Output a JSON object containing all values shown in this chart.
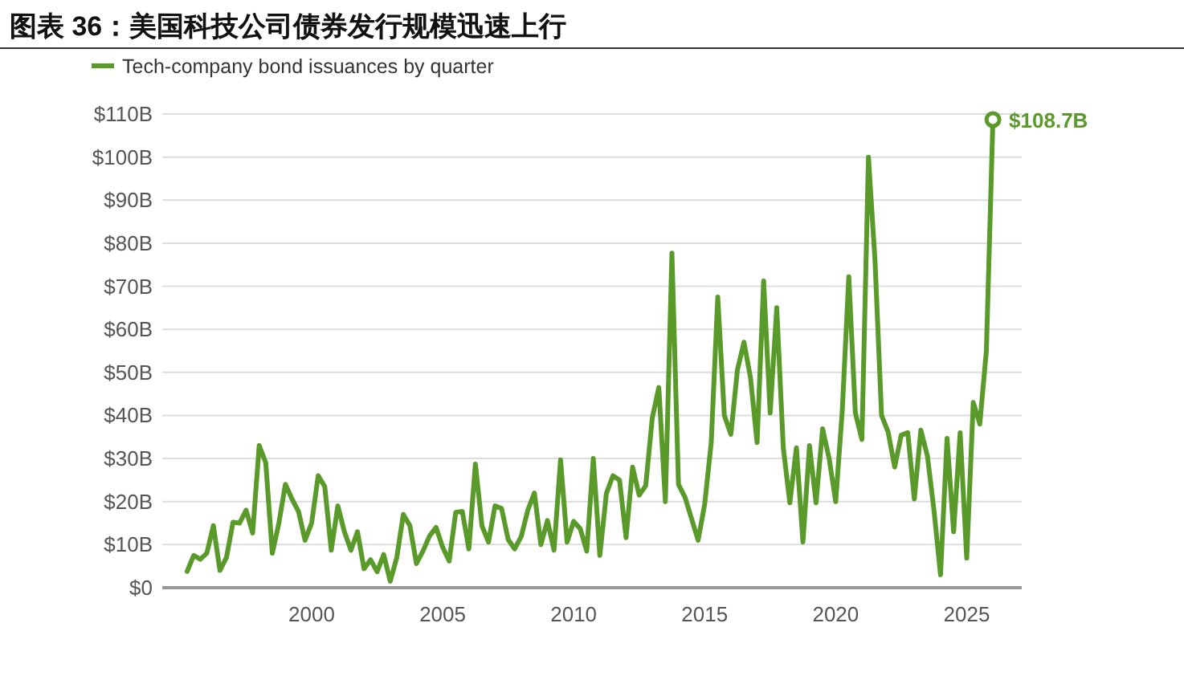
{
  "chart_data": {
    "type": "line",
    "title": "图表 36：美国科技公司债券发行规模迅速上行",
    "legend": "top left",
    "grid": "y",
    "line_style": "solid",
    "xlim": [
      1994.3,
      2027.1
    ],
    "xticks": [
      2000,
      2005,
      2010,
      2015,
      2020,
      2025
    ],
    "ylim": [
      0,
      110
    ],
    "yticks": [
      {
        "value": 0,
        "label": "$0"
      },
      {
        "value": 10,
        "label": "$10B"
      },
      {
        "value": 20,
        "label": "$20B"
      },
      {
        "value": 30,
        "label": "$30B"
      },
      {
        "value": 40,
        "label": "$40B"
      },
      {
        "value": 50,
        "label": "$50B"
      },
      {
        "value": 60,
        "label": "$60B"
      },
      {
        "value": 70,
        "label": "$70B"
      },
      {
        "value": 80,
        "label": "$80B"
      },
      {
        "value": 90,
        "label": "$90B"
      },
      {
        "value": 100,
        "label": "$100B"
      },
      {
        "value": 110,
        "label": "$110B"
      }
    ],
    "x": [
      1995.25,
      1995.5,
      1995.75,
      1996,
      1996.25,
      1996.5,
      1996.75,
      1997,
      1997.25,
      1997.5,
      1997.75,
      1998,
      1998.25,
      1998.5,
      1998.75,
      1999,
      1999.25,
      1999.5,
      1999.75,
      2000,
      2000.25,
      2000.5,
      2000.75,
      2001,
      2001.25,
      2001.5,
      2001.75,
      2002,
      2002.25,
      2002.5,
      2002.75,
      2003,
      2003.25,
      2003.5,
      2003.75,
      2004,
      2004.25,
      2004.5,
      2004.75,
      2005,
      2005.25,
      2005.5,
      2005.75,
      2006,
      2006.25,
      2006.5,
      2006.75,
      2007,
      2007.25,
      2007.5,
      2007.75,
      2008,
      2008.25,
      2008.5,
      2008.75,
      2009,
      2009.25,
      2009.5,
      2009.75,
      2010,
      2010.25,
      2010.5,
      2010.75,
      2011,
      2011.25,
      2011.5,
      2011.75,
      2012,
      2012.25,
      2012.5,
      2012.75,
      2013,
      2013.25,
      2013.5,
      2013.75,
      2014,
      2014.25,
      2014.5,
      2014.75,
      2015,
      2015.25,
      2015.5,
      2015.75,
      2016,
      2016.25,
      2016.5,
      2016.75,
      2017,
      2017.25,
      2017.5,
      2017.75,
      2018,
      2018.25,
      2018.5,
      2018.75,
      2019,
      2019.25,
      2019.5,
      2019.75,
      2020,
      2020.25,
      2020.5,
      2020.75,
      2021,
      2021.25,
      2021.5,
      2021.75,
      2022,
      2022.25,
      2022.5,
      2022.75,
      2023,
      2023.25,
      2023.5,
      2023.75,
      2024,
      2024.25,
      2024.5,
      2024.75,
      2025,
      2025.25,
      2025.5,
      2025.75,
      2026
    ],
    "series": [
      {
        "name": "Tech-company bond issuances by quarter",
        "color": "#5a9a2a",
        "values": [
          3.8,
          7.5,
          6.6,
          8,
          14.4,
          4,
          7,
          15.2,
          15,
          18,
          12.7,
          33,
          29,
          8,
          15,
          24,
          20.6,
          17.7,
          11,
          15,
          26,
          23.5,
          8.7,
          19,
          13,
          8.7,
          13,
          4.4,
          6.5,
          3.7,
          7.7,
          1.5,
          7,
          17,
          14.4,
          5.6,
          8.5,
          12,
          14,
          9.4,
          6.2,
          17.5,
          17.7,
          9,
          28.7,
          14.4,
          10.6,
          19,
          18.4,
          11.2,
          9,
          11.9,
          18,
          22,
          10,
          15.6,
          8.7,
          29.7,
          10.6,
          15.4,
          13.7,
          8.5,
          30,
          7.5,
          21.9,
          26,
          25,
          11.6,
          28,
          21.5,
          23.7,
          39.4,
          46.5,
          20,
          77.7,
          24,
          21,
          16,
          11,
          19.4,
          33.7,
          67.5,
          40,
          35.6,
          50.6,
          57,
          48.7,
          33.7,
          71.2,
          40.6,
          65,
          32.5,
          19.7,
          32.5,
          10.6,
          33,
          19.7,
          36.9,
          30,
          20,
          41,
          72.2,
          40.6,
          34.4,
          100,
          76,
          40,
          36.2,
          28,
          35.4,
          36,
          20.6,
          36.6,
          30.6,
          18,
          3,
          34.7,
          13,
          36,
          6.9,
          43,
          38,
          55,
          108.7
        ],
        "value_labels": [
          null,
          null,
          null,
          null,
          null,
          null,
          null,
          null,
          null,
          null,
          null,
          null,
          null,
          null,
          null,
          null,
          null,
          null,
          null,
          null,
          null,
          null,
          null,
          null,
          null,
          null,
          null,
          null,
          null,
          null,
          null,
          null,
          null,
          null,
          null,
          null,
          null,
          null,
          null,
          null,
          null,
          null,
          null,
          null,
          null,
          null,
          null,
          null,
          null,
          null,
          null,
          null,
          null,
          null,
          null,
          null,
          null,
          null,
          null,
          null,
          null,
          null,
          null,
          null,
          null,
          null,
          null,
          null,
          null,
          null,
          null,
          null,
          null,
          null,
          null,
          null,
          null,
          null,
          null,
          null,
          null,
          null,
          null,
          null,
          null,
          null,
          null,
          null,
          null,
          null,
          null,
          null,
          null,
          null,
          null,
          null,
          null,
          null,
          null,
          null,
          null,
          null,
          null,
          null,
          null,
          null,
          null,
          null,
          null,
          null,
          null,
          null,
          null,
          null,
          null,
          null,
          null,
          null,
          null,
          null,
          null,
          null,
          null,
          "$108.7B"
        ]
      }
    ]
  }
}
